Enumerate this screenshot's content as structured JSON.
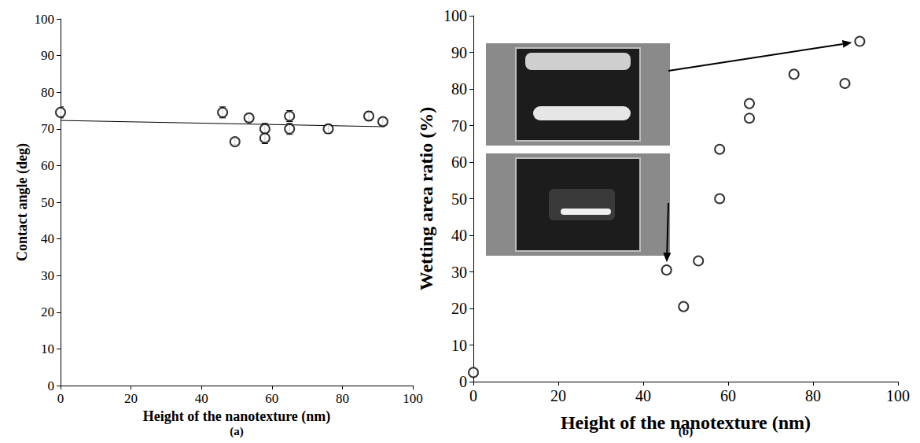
{
  "chart_data": [
    {
      "type": "scatter",
      "title": "(a)",
      "x_label": "Height of the nanotexture (nm)",
      "y_label": "Contact angle (deg)",
      "xlim": [
        0,
        100
      ],
      "xticks": [
        0,
        20,
        40,
        60,
        80,
        100
      ],
      "ylim": [
        0,
        100
      ],
      "yticks": [
        0,
        10,
        20,
        30,
        40,
        50,
        60,
        70,
        80,
        90,
        100
      ],
      "grid": false,
      "series": [
        {
          "type": "scatter",
          "marker": "circle",
          "color": "#000000",
          "x": [
            0,
            46,
            49.5,
            53.5,
            58,
            58,
            65,
            65,
            76,
            87.5,
            91.5
          ],
          "values": [
            74.5,
            74.5,
            66.5,
            73,
            70,
            67.5,
            73.5,
            70,
            70,
            73.5,
            72
          ],
          "errors": [
            1.5,
            1.5,
            0.8,
            1,
            1.5,
            1.5,
            1.5,
            1.5,
            1.2,
            1.2,
            1
          ]
        },
        {
          "type": "line",
          "line_style": "solid",
          "color": "#000000",
          "x": [
            0,
            92
          ],
          "values": [
            72.3,
            70.6
          ]
        }
      ]
    },
    {
      "type": "scatter",
      "title": "(b)",
      "x_label": "Height of the nanotexture (nm)",
      "y_label": "Wetting area ratio (%)",
      "xlim": [
        0,
        100
      ],
      "xticks": [
        0,
        20,
        40,
        60,
        80,
        100
      ],
      "ylim": [
        0,
        100
      ],
      "yticks": [
        0,
        10,
        20,
        30,
        40,
        50,
        60,
        70,
        80,
        90,
        100
      ],
      "grid": false,
      "series": [
        {
          "type": "scatter",
          "marker": "circle",
          "color": "#000000",
          "x": [
            0,
            45.5,
            49.5,
            53,
            58,
            58,
            65,
            65,
            75.5,
            87.5,
            91
          ],
          "values": [
            2.5,
            30.5,
            20.5,
            33,
            63.5,
            50,
            76,
            72,
            84,
            81.5,
            93
          ]
        }
      ]
    }
  ]
}
